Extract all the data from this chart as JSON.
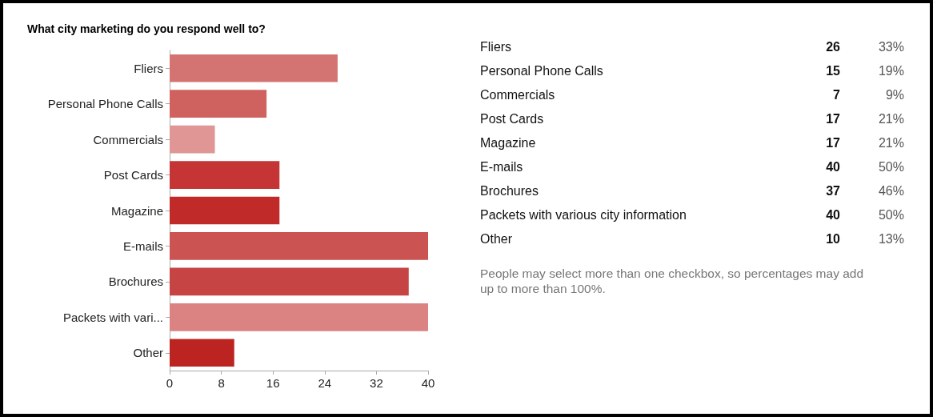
{
  "chart_data": [
    {
      "type": "bar",
      "orientation": "horizontal",
      "title": "What city marketing do you respond well to?",
      "categories": [
        "Fliers",
        "Personal Phone Calls",
        "Commercials",
        "Post Cards",
        "Magazine",
        "E-mails",
        "Brochures",
        "Packets with vari...",
        "Other"
      ],
      "values": [
        26,
        15,
        7,
        17,
        17,
        40,
        37,
        40,
        10
      ],
      "colors": [
        "#d47472",
        "#cf615e",
        "#df9695",
        "#c53536",
        "#c02a29",
        "#cb5351",
        "#c64544",
        "#da8382",
        "#bc2422"
      ],
      "xlim": [
        0,
        40
      ],
      "xticks": [
        0,
        8,
        16,
        24,
        32,
        40
      ],
      "grid": false
    },
    {
      "type": "other",
      "data_labels": true,
      "categories": [
        "Fliers",
        "Personal Phone Calls",
        "Commercials",
        "Post Cards",
        "Magazine",
        "E-mails",
        "Brochures",
        "Packets with various city information",
        "Other"
      ],
      "values": [
        26,
        15,
        7,
        17,
        17,
        40,
        37,
        40,
        10
      ],
      "annotations": [
        "33%",
        "19%",
        "9%",
        "21%",
        "21%",
        "50%",
        "46%",
        "50%",
        "13%",
        "People may select more than one checkbox, so percentages may add up to more than 100%."
      ]
    }
  ]
}
